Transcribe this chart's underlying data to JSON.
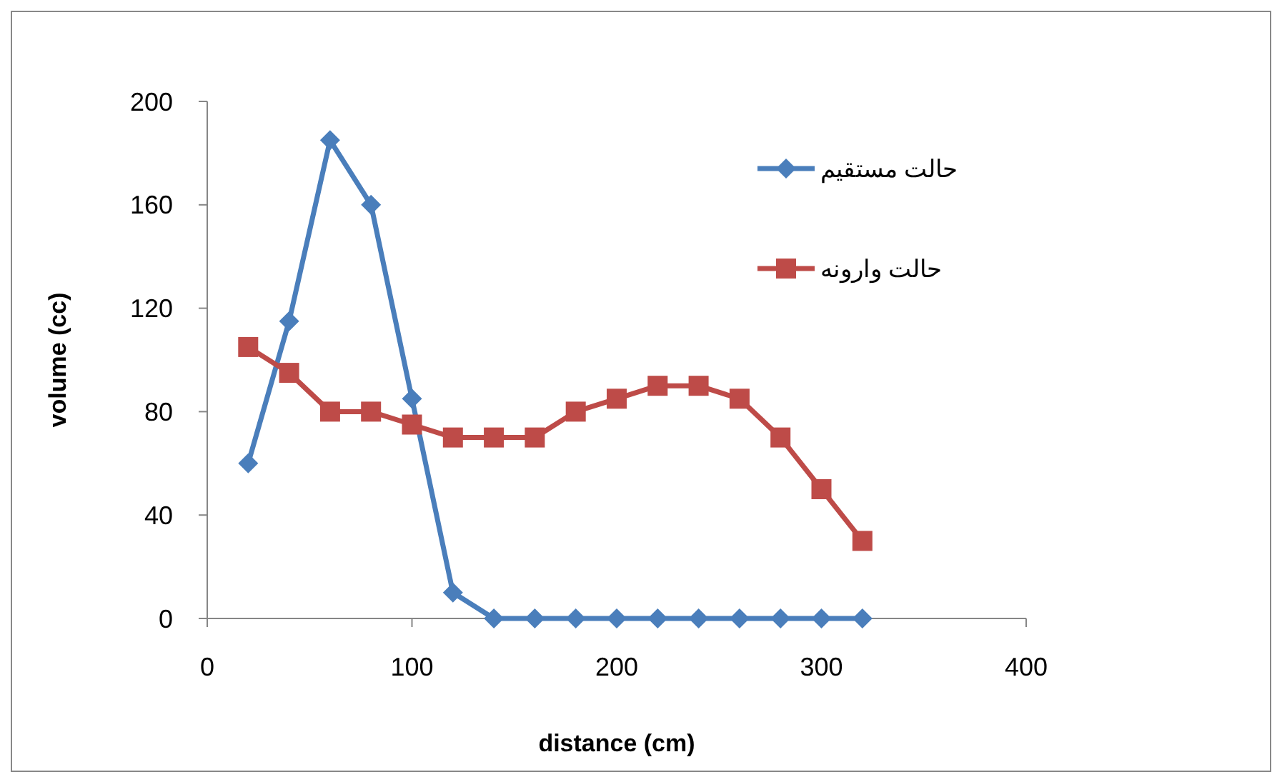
{
  "chart_data": {
    "type": "line",
    "xlabel": "distance (cm)",
    "ylabel": "volume (cc)",
    "x": [
      20,
      40,
      60,
      80,
      100,
      120,
      140,
      160,
      180,
      200,
      220,
      240,
      260,
      280,
      300,
      320
    ],
    "xlim": [
      0,
      400
    ],
    "xticks": [
      0,
      100,
      200,
      300,
      400
    ],
    "ylim": [
      0,
      200
    ],
    "yticks": [
      0,
      40,
      80,
      120,
      160,
      200
    ],
    "grid": false,
    "legend": "top right",
    "series": [
      {
        "name": "حالت مستقیم",
        "color": "#4a7ebb",
        "marker": "diamond",
        "values": [
          60,
          115,
          185,
          160,
          85,
          10,
          0,
          0,
          0,
          0,
          0,
          0,
          0,
          0,
          0,
          0
        ]
      },
      {
        "name": "حالت وارونه",
        "color": "#be4b48",
        "marker": "square",
        "values": [
          105,
          95,
          80,
          80,
          75,
          70,
          70,
          70,
          80,
          85,
          90,
          90,
          85,
          70,
          50,
          30
        ]
      }
    ]
  }
}
